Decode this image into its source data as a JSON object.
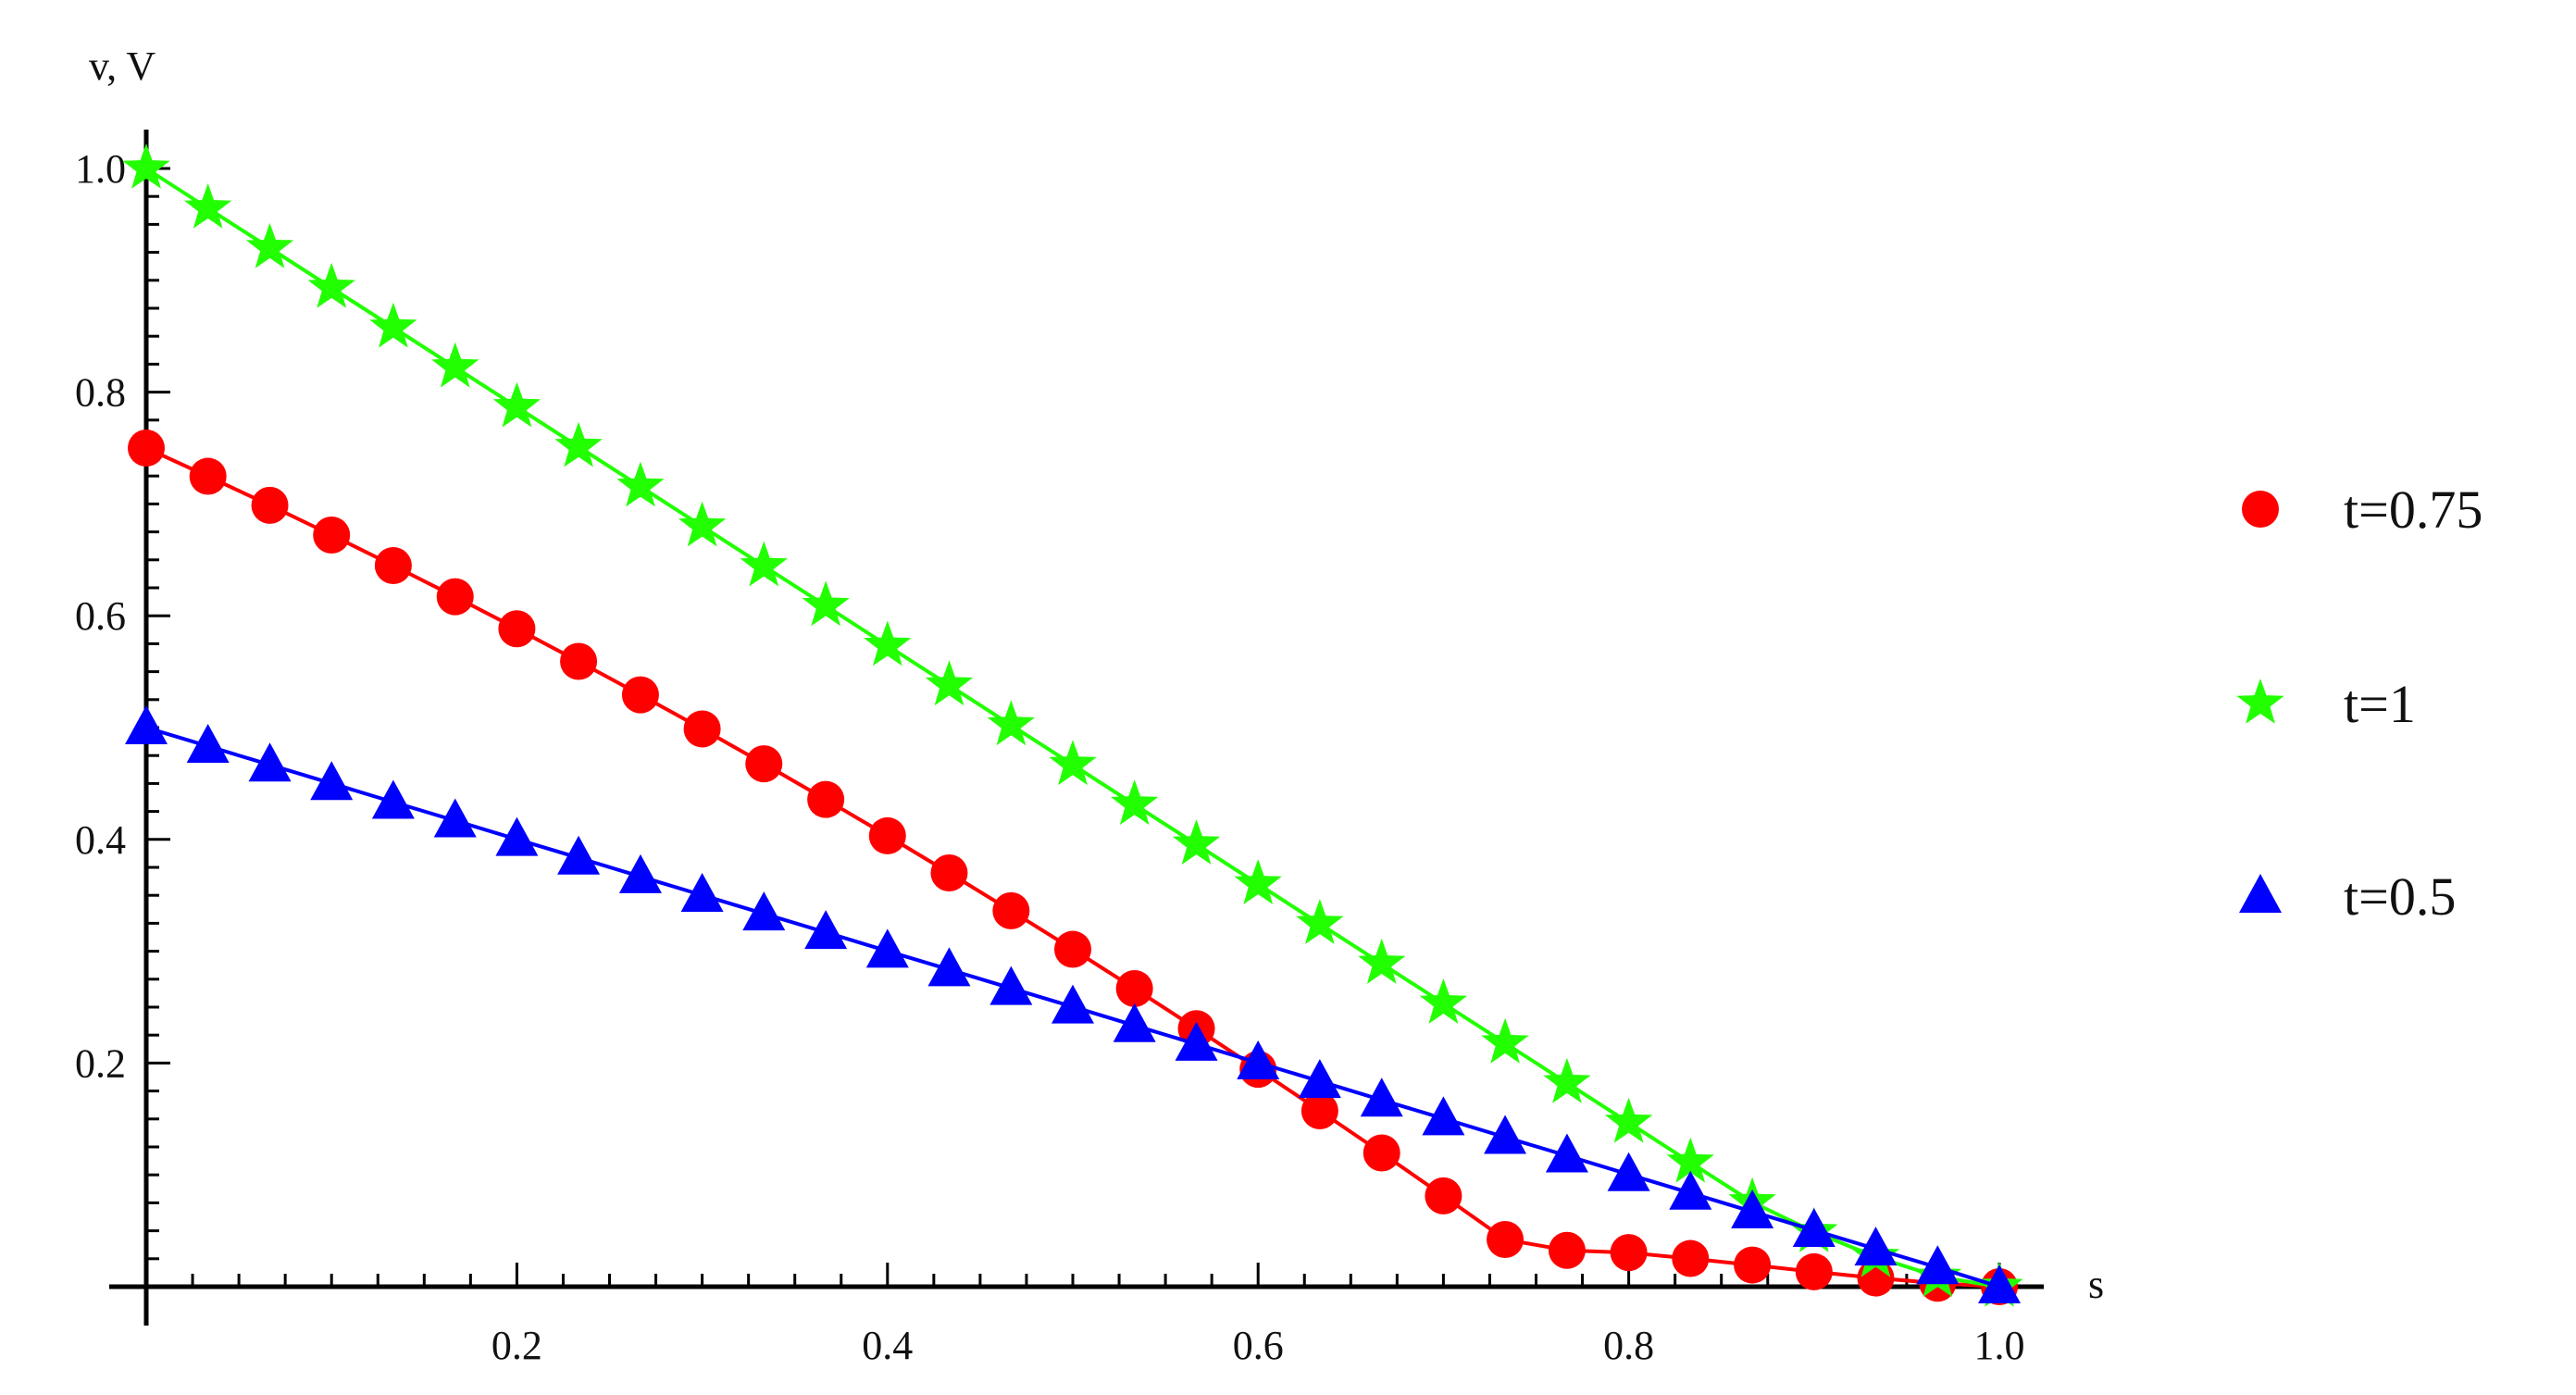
{
  "chart_data": {
    "type": "line",
    "xlabel": "s",
    "ylabel": "v, V",
    "xlim": [
      0,
      1.0
    ],
    "ylim": [
      0,
      1.0
    ],
    "x_ticks": [
      "0.2",
      "0.4",
      "0.6",
      "0.8",
      "1.0"
    ],
    "y_ticks": [
      "0.2",
      "0.4",
      "0.6",
      "0.8",
      "1.0"
    ],
    "grid": false,
    "legend_position": "right",
    "x": [
      0,
      0.0333,
      0.0667,
      0.1,
      0.1333,
      0.1667,
      0.2,
      0.2333,
      0.2667,
      0.3,
      0.3333,
      0.3667,
      0.4,
      0.4333,
      0.4667,
      0.5,
      0.5333,
      0.5667,
      0.6,
      0.6333,
      0.6667,
      0.7,
      0.7333,
      0.7667,
      0.8,
      0.8333,
      0.8667,
      0.9,
      0.9333,
      0.9667,
      1.0
    ],
    "series": [
      {
        "name": "t=0.75",
        "marker": "circle",
        "color": "#ff0000",
        "values": [
          0.75,
          0.7247,
          0.6988,
          0.6722,
          0.6449,
          0.617,
          0.5884,
          0.5592,
          0.5293,
          0.4988,
          0.4676,
          0.4357,
          0.4032,
          0.37,
          0.3362,
          0.3017,
          0.2666,
          0.2308,
          0.1944,
          0.1573,
          0.1196,
          0.0812,
          0.0422,
          0.0325,
          0.0305,
          0.0252,
          0.0194,
          0.0133,
          0.0078,
          0.0031,
          0.0
        ]
      },
      {
        "name": "t=1",
        "marker": "star",
        "color": "#22ff00",
        "values": [
          1.0,
          0.9644,
          0.9289,
          0.8933,
          0.8578,
          0.8222,
          0.7867,
          0.7511,
          0.7156,
          0.68,
          0.6444,
          0.6089,
          0.5733,
          0.5378,
          0.5022,
          0.4667,
          0.4311,
          0.3956,
          0.36,
          0.3244,
          0.2889,
          0.2533,
          0.2178,
          0.1822,
          0.1467,
          0.1111,
          0.0756,
          0.0489,
          0.0267,
          0.0089,
          0.0
        ]
      },
      {
        "name": "t=0.5",
        "marker": "triangle",
        "color": "#0000ff",
        "values": [
          0.5,
          0.4834,
          0.4667,
          0.4501,
          0.4334,
          0.4168,
          0.4001,
          0.3835,
          0.3668,
          0.3502,
          0.3335,
          0.3169,
          0.3002,
          0.2836,
          0.2669,
          0.2503,
          0.2336,
          0.217,
          0.2003,
          0.1837,
          0.167,
          0.1504,
          0.1337,
          0.1171,
          0.1004,
          0.0838,
          0.0671,
          0.0505,
          0.0338,
          0.0172,
          0.0
        ]
      }
    ]
  }
}
